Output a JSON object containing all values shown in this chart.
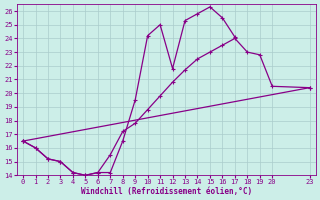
{
  "xlabel": "Windchill (Refroidissement éolien,°C)",
  "background_color": "#cceee8",
  "grid_color": "#aacccc",
  "line_color": "#880088",
  "xlim": [
    -0.5,
    23.5
  ],
  "ylim": [
    14,
    26.5
  ],
  "xticks": [
    0,
    1,
    2,
    3,
    4,
    5,
    6,
    7,
    8,
    9,
    10,
    11,
    12,
    13,
    14,
    15,
    16,
    17,
    18,
    19,
    20,
    23
  ],
  "yticks": [
    14,
    15,
    16,
    17,
    18,
    19,
    20,
    21,
    22,
    23,
    24,
    25,
    26
  ],
  "line1_x": [
    0,
    1,
    2,
    3,
    4,
    5,
    6,
    7,
    8,
    9,
    10,
    11,
    12,
    13,
    14,
    15,
    16,
    17
  ],
  "line1_y": [
    16.5,
    16.0,
    15.2,
    15.0,
    14.2,
    14.0,
    14.2,
    14.2,
    16.5,
    19.5,
    24.2,
    25.0,
    21.8,
    25.3,
    25.8,
    26.3,
    25.5,
    24.1
  ],
  "line2_x": [
    0,
    23
  ],
  "line2_y": [
    16.5,
    20.4
  ],
  "line3_x": [
    0,
    1,
    2,
    3,
    4,
    5,
    6,
    7,
    8,
    9,
    10,
    11,
    12,
    13,
    14,
    15,
    16,
    17,
    18,
    19,
    20,
    23
  ],
  "line3_y": [
    16.5,
    16.0,
    15.2,
    15.0,
    14.2,
    14.0,
    14.2,
    15.5,
    17.2,
    17.8,
    18.8,
    19.8,
    20.8,
    21.7,
    22.5,
    23.0,
    23.5,
    24.0,
    23.0,
    22.8,
    20.5,
    20.4
  ],
  "marker_size": 3,
  "linewidth": 0.9
}
